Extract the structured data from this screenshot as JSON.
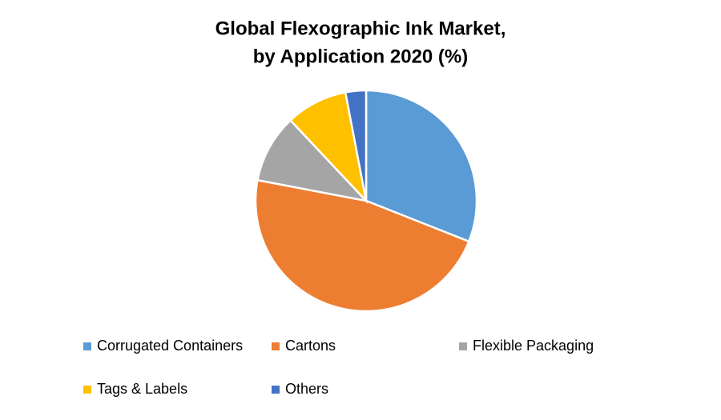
{
  "chart_data": {
    "type": "pie",
    "title": [
      "Global Flexographic Ink Market,",
      "by Application 2020 (%)"
    ],
    "categories": [
      "Corrugated Containers",
      "Cartons",
      "Flexible Packaging",
      "Tags & Labels",
      "Others"
    ],
    "values": [
      31,
      47,
      10,
      9,
      3
    ],
    "colors": [
      "#5b9bd5",
      "#ed7d31",
      "#a5a5a5",
      "#ffc000",
      "#4472c4"
    ],
    "legend": "bottom"
  }
}
